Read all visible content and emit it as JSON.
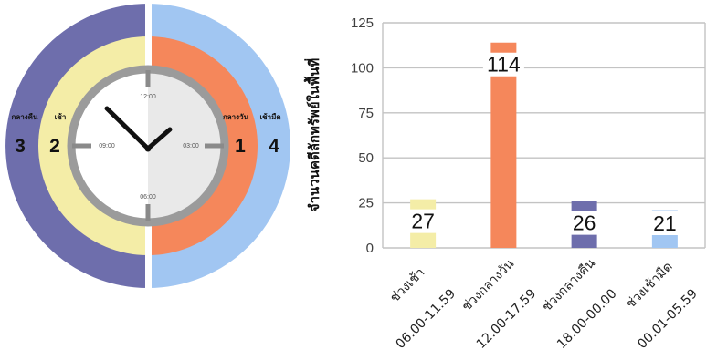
{
  "clock": {
    "segment_labels": {
      "night": "กลางคืน",
      "morning": "เช้า",
      "afternoon": "กลางวัน",
      "dawn": "เช้ามืด"
    },
    "segment_numbers": {
      "night": "3",
      "morning": "2",
      "afternoon": "1",
      "dawn": "4"
    },
    "segment_colors": {
      "night": "#6e6eac",
      "morning": "#f4eda7",
      "afternoon": "#f5875b",
      "dawn": "#a1c6f2"
    },
    "hour_labels": {
      "top": "12:00",
      "left": "09:00",
      "right": "03:00",
      "bottom": "06:00"
    }
  },
  "chart_data": {
    "type": "bar",
    "categories": [
      "ช่วงเช้า",
      "ช่วงกลางวัน",
      "ช่วงกลางคืน",
      "ช่วงเช้ามืด"
    ],
    "category_ranges": [
      "06.00-11.59",
      "12.00-17.59",
      "18.00-00.00",
      "00.01-05.59"
    ],
    "values": [
      27,
      114,
      26,
      21
    ],
    "colors": [
      "#f4eda7",
      "#f5875b",
      "#6e6eac",
      "#a1c6f2"
    ],
    "title": "",
    "xlabel": "",
    "ylabel": "จำนวนคดีลักทรัพย์ในพื้นที่",
    "ylim": [
      0,
      125
    ],
    "yticks": [
      0,
      25,
      50,
      75,
      100,
      125
    ],
    "data_labels": true,
    "grid": true,
    "legend": "none"
  }
}
